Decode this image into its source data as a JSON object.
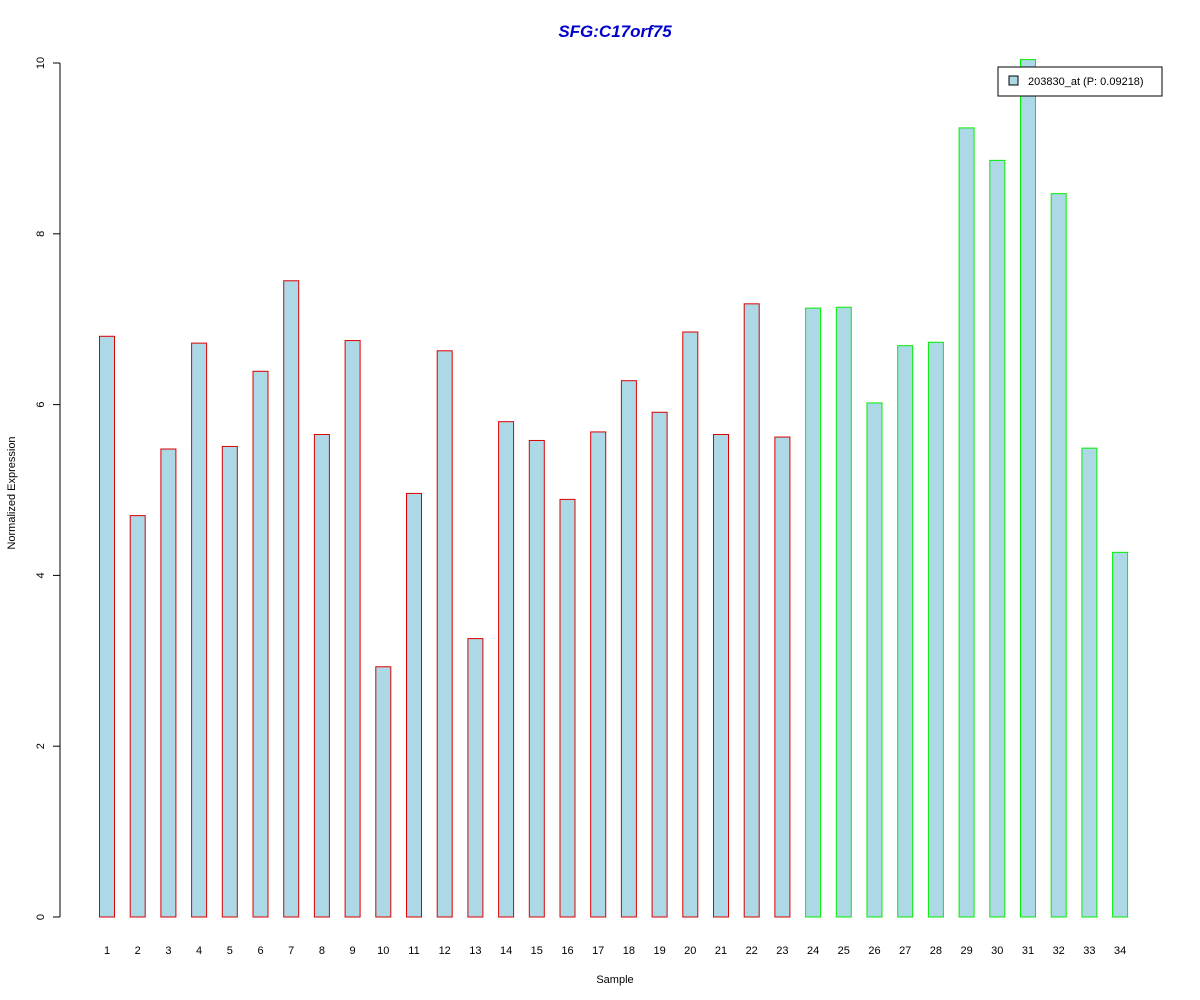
{
  "chart_data": {
    "type": "bar",
    "title": "SFG:C17orf75",
    "title_color": "#0000CD",
    "xlabel": "Sample",
    "ylabel": "Normalized Expression",
    "categories": [
      "1",
      "2",
      "3",
      "4",
      "5",
      "6",
      "7",
      "8",
      "9",
      "10",
      "11",
      "12",
      "13",
      "14",
      "15",
      "16",
      "17",
      "18",
      "19",
      "20",
      "21",
      "22",
      "23",
      "24",
      "25",
      "26",
      "27",
      "28",
      "29",
      "30",
      "31",
      "32",
      "33",
      "34"
    ],
    "series": [
      {
        "name": "203830_at (P: 0.09218)",
        "values": [
          6.8,
          4.7,
          5.48,
          6.72,
          5.51,
          6.39,
          7.45,
          5.65,
          6.75,
          2.93,
          4.96,
          6.63,
          3.26,
          5.8,
          5.58,
          4.89,
          5.68,
          6.28,
          5.91,
          6.85,
          5.65,
          7.18,
          5.62,
          7.13,
          7.14,
          6.02,
          6.69,
          6.73,
          9.24,
          8.86,
          10.04,
          8.47,
          5.49,
          4.27
        ],
        "fill": "#ADD8E6",
        "border_colors": [
          "#DD0000",
          "#DD0000",
          "#DD0000",
          "#DD0000",
          "#DD0000",
          "#DD0000",
          "#DD0000",
          "#DD0000",
          "#DD0000",
          "#DD0000",
          "#DD0000",
          "#DD0000",
          "#DD0000",
          "#DD0000",
          "#DD0000",
          "#DD0000",
          "#DD0000",
          "#DD0000",
          "#DD0000",
          "#DD0000",
          "#DD0000",
          "#DD0000",
          "#DD0000",
          "#00EE00",
          "#00EE00",
          "#00EE00",
          "#00EE00",
          "#00EE00",
          "#00EE00",
          "#00EE00",
          "#00EE00",
          "#00EE00",
          "#00EE00",
          "#00EE00"
        ]
      }
    ],
    "ylim": [
      0,
      10
    ],
    "yticks": [
      "0",
      "2",
      "4",
      "6",
      "8",
      "10"
    ],
    "grid": false,
    "legend_position": "top-right"
  }
}
